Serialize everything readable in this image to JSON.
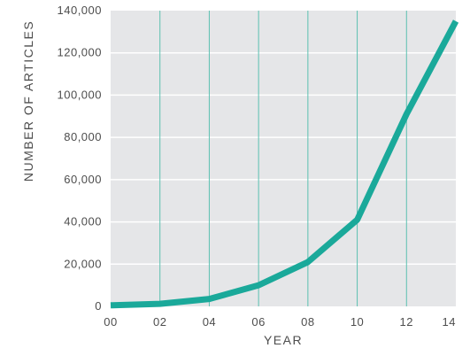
{
  "chart_data": {
    "type": "line",
    "title": "",
    "xlabel": "YEAR",
    "ylabel": "NUMBER OF ARTICLES",
    "x": [
      "00",
      "02",
      "04",
      "06",
      "08",
      "10",
      "12",
      "14"
    ],
    "x_tick_labels": [
      "00",
      "02",
      "04",
      "06",
      "08",
      "10",
      "12",
      "14"
    ],
    "y_tick_labels": [
      "0",
      "20,000",
      "40,000",
      "60,000",
      "80,000",
      "100,000",
      "120,000",
      "140,000"
    ],
    "ylim": [
      0,
      140000
    ],
    "series": [
      {
        "values": [
          500,
          1200,
          3500,
          10000,
          21000,
          41000,
          91000,
          135000
        ]
      }
    ],
    "grid": {
      "vertical": true,
      "horizontal": true
    },
    "colors": {
      "line": "#1aa99a",
      "plot_background": "#e5e6e8",
      "vertical_grid": "#5cc0b1",
      "horizontal_grid": "#ffffff"
    }
  }
}
